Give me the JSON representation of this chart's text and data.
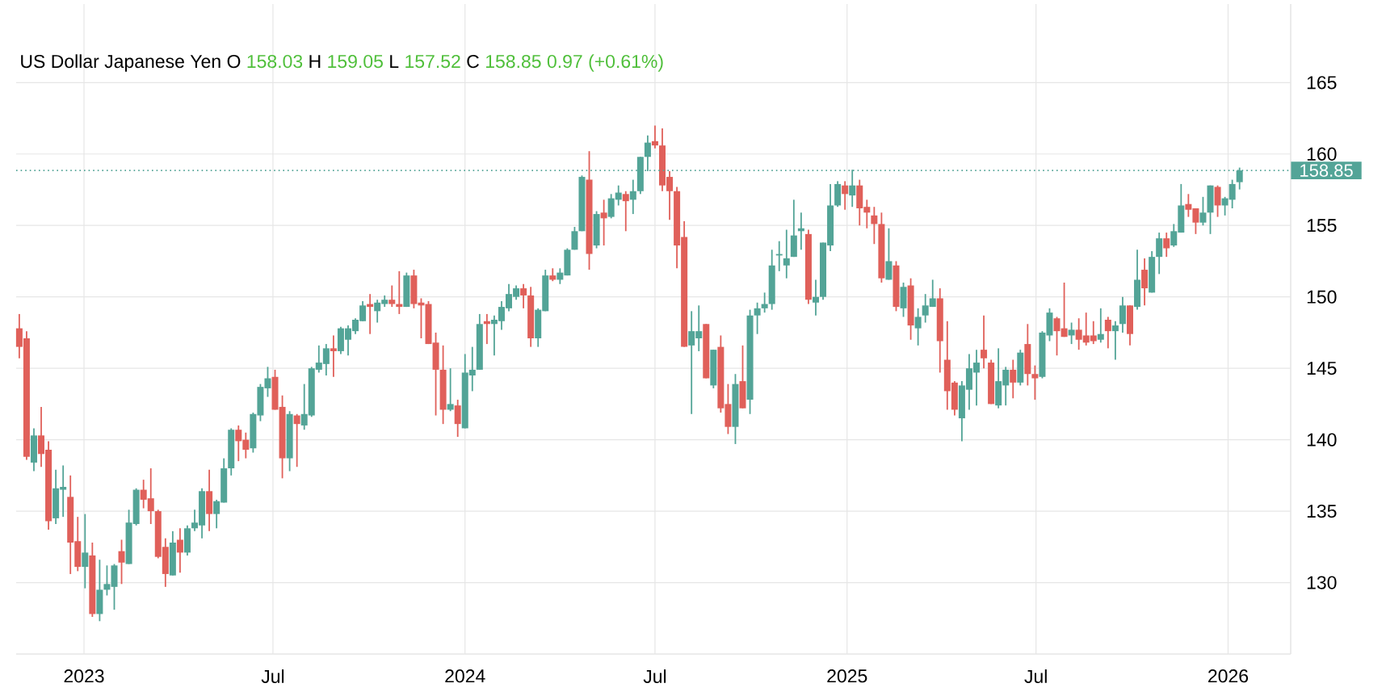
{
  "chart_data": {
    "type": "candlestick",
    "title": "US Dollar Japanese Yen",
    "annotations": [
      "O",
      "158.03",
      "H",
      "159.05",
      "L",
      "157.52",
      "C",
      "158.85",
      "0.97 (+0.61%)"
    ],
    "x": [
      "2022-10-31",
      "2022-11-07",
      "2022-11-14",
      "2022-11-21",
      "2022-11-28",
      "2022-12-05",
      "2022-12-12",
      "2022-12-19",
      "2022-12-26",
      "2023-01-02",
      "2023-01-09",
      "2023-01-16",
      "2023-01-23",
      "2023-01-30",
      "2023-02-06",
      "2023-02-13",
      "2023-02-20",
      "2023-02-27",
      "2023-03-06",
      "2023-03-13",
      "2023-03-20",
      "2023-03-27",
      "2023-04-03",
      "2023-04-10",
      "2023-04-17",
      "2023-04-24",
      "2023-05-01",
      "2023-05-08",
      "2023-05-15",
      "2023-05-22",
      "2023-05-29",
      "2023-06-05",
      "2023-06-12",
      "2023-06-19",
      "2023-06-26",
      "2023-07-03",
      "2023-07-10",
      "2023-07-17",
      "2023-07-24",
      "2023-07-31",
      "2023-08-07",
      "2023-08-14",
      "2023-08-21",
      "2023-08-28",
      "2023-09-04",
      "2023-09-11",
      "2023-09-18",
      "2023-09-25",
      "2023-10-02",
      "2023-10-09",
      "2023-10-16",
      "2023-10-23",
      "2023-10-30",
      "2023-11-06",
      "2023-11-13",
      "2023-11-20",
      "2023-11-27",
      "2023-12-04",
      "2023-12-11",
      "2023-12-18",
      "2023-12-25",
      "2024-01-01",
      "2024-01-08",
      "2024-01-15",
      "2024-01-22",
      "2024-01-29",
      "2024-02-05",
      "2024-02-12",
      "2024-02-19",
      "2024-02-26",
      "2024-03-04",
      "2024-03-11",
      "2024-03-18",
      "2024-03-25",
      "2024-04-01",
      "2024-04-08",
      "2024-04-15",
      "2024-04-22",
      "2024-04-29",
      "2024-05-06",
      "2024-05-13",
      "2024-05-20",
      "2024-05-27",
      "2024-06-03",
      "2024-06-10",
      "2024-06-17",
      "2024-06-24",
      "2024-07-01",
      "2024-07-08",
      "2024-07-15",
      "2024-07-22",
      "2024-07-29",
      "2024-08-05",
      "2024-08-12",
      "2024-08-19",
      "2024-08-26",
      "2024-09-02",
      "2024-09-09",
      "2024-09-16",
      "2024-09-23",
      "2024-09-30",
      "2024-10-07",
      "2024-10-14",
      "2024-10-21",
      "2024-10-28",
      "2024-11-04",
      "2024-11-11",
      "2024-11-18",
      "2024-11-25",
      "2024-12-02",
      "2024-12-09",
      "2024-12-16",
      "2024-12-23",
      "2024-12-30",
      "2025-01-06",
      "2025-01-13",
      "2025-01-20",
      "2025-01-27",
      "2025-02-03",
      "2025-02-10",
      "2025-02-17",
      "2025-02-24",
      "2025-03-03",
      "2025-03-10",
      "2025-03-17",
      "2025-03-24",
      "2025-03-31",
      "2025-04-07",
      "2025-04-14",
      "2025-04-21",
      "2025-04-28",
      "2025-05-05",
      "2025-05-12",
      "2025-05-19",
      "2025-05-26",
      "2025-06-02",
      "2025-06-09",
      "2025-06-16",
      "2025-06-23",
      "2025-06-30",
      "2025-07-07",
      "2025-07-14",
      "2025-07-21",
      "2025-07-28",
      "2025-08-04",
      "2025-08-11",
      "2025-08-18",
      "2025-08-25",
      "2025-09-01",
      "2025-09-08",
      "2025-09-15",
      "2025-09-22",
      "2025-09-29",
      "2025-10-06",
      "2025-10-13",
      "2025-10-20",
      "2025-10-27",
      "2025-11-03",
      "2025-11-10",
      "2025-11-17",
      "2025-11-24",
      "2025-12-01",
      "2025-12-08",
      "2025-12-15",
      "2025-12-22",
      "2025-12-29",
      "2026-01-05",
      "2026-01-12"
    ],
    "ohlc": [
      [
        147.8,
        148.8,
        145.7,
        146.5
      ],
      [
        147.1,
        147.6,
        138.6,
        138.8
      ],
      [
        138.4,
        140.8,
        137.8,
        140.3
      ],
      [
        140.3,
        142.3,
        138.1,
        139.0
      ],
      [
        139.3,
        139.9,
        133.7,
        134.3
      ],
      [
        134.5,
        137.9,
        134.1,
        136.6
      ],
      [
        136.5,
        138.2,
        134.6,
        136.7
      ],
      [
        136.0,
        137.5,
        130.6,
        132.8
      ],
      [
        132.9,
        134.6,
        130.8,
        131.1
      ],
      [
        131.1,
        134.8,
        129.6,
        132.1
      ],
      [
        131.9,
        132.8,
        127.6,
        127.8
      ],
      [
        127.8,
        131.6,
        127.3,
        129.5
      ],
      [
        129.5,
        131.2,
        129.1,
        129.9
      ],
      [
        129.7,
        131.3,
        128.1,
        131.2
      ],
      [
        132.2,
        133.0,
        129.9,
        131.4
      ],
      [
        131.3,
        135.1,
        131.3,
        134.2
      ],
      [
        134.1,
        136.6,
        134.0,
        136.5
      ],
      [
        136.5,
        137.2,
        135.2,
        135.8
      ],
      [
        135.9,
        138.0,
        134.1,
        135.0
      ],
      [
        135.0,
        135.1,
        131.7,
        131.8
      ],
      [
        132.5,
        133.1,
        129.7,
        130.6
      ],
      [
        130.5,
        133.6,
        130.5,
        132.8
      ],
      [
        133.0,
        133.8,
        130.7,
        132.1
      ],
      [
        132.1,
        134.0,
        131.9,
        133.8
      ],
      [
        133.8,
        135.1,
        133.6,
        134.2
      ],
      [
        134.0,
        136.6,
        133.1,
        136.4
      ],
      [
        136.4,
        137.9,
        133.6,
        134.8
      ],
      [
        134.8,
        135.8,
        133.8,
        135.7
      ],
      [
        135.6,
        138.7,
        135.6,
        138.0
      ],
      [
        138.0,
        140.8,
        137.5,
        140.7
      ],
      [
        140.7,
        141.0,
        138.5,
        139.9
      ],
      [
        140.0,
        140.5,
        138.7,
        139.3
      ],
      [
        139.4,
        141.9,
        139.1,
        141.8
      ],
      [
        141.7,
        143.9,
        141.3,
        143.7
      ],
      [
        143.6,
        145.1,
        143.0,
        144.3
      ],
      [
        144.4,
        144.9,
        142.1,
        142.1
      ],
      [
        142.3,
        143.1,
        137.3,
        138.7
      ],
      [
        138.7,
        142.0,
        137.8,
        141.8
      ],
      [
        141.7,
        141.8,
        138.1,
        141.1
      ],
      [
        141.0,
        143.9,
        140.7,
        141.8
      ],
      [
        141.7,
        145.1,
        141.6,
        145.0
      ],
      [
        144.9,
        146.6,
        144.7,
        145.4
      ],
      [
        145.3,
        146.7,
        144.5,
        146.4
      ],
      [
        146.4,
        147.3,
        144.4,
        146.2
      ],
      [
        146.2,
        147.9,
        146.0,
        147.8
      ],
      [
        147.0,
        148.0,
        145.9,
        147.8
      ],
      [
        147.6,
        148.5,
        147.4,
        148.4
      ],
      [
        148.3,
        149.7,
        148.3,
        149.4
      ],
      [
        149.5,
        150.2,
        147.4,
        149.3
      ],
      [
        149.0,
        149.8,
        148.2,
        149.6
      ],
      [
        149.5,
        150.1,
        149.3,
        149.8
      ],
      [
        149.8,
        150.8,
        149.3,
        149.5
      ],
      [
        149.5,
        151.8,
        148.8,
        149.3
      ],
      [
        149.3,
        151.7,
        149.3,
        151.5
      ],
      [
        151.5,
        151.9,
        149.2,
        149.5
      ],
      [
        149.6,
        149.9,
        147.1,
        149.4
      ],
      [
        149.5,
        149.7,
        146.7,
        146.7
      ],
      [
        146.8,
        147.5,
        141.7,
        144.9
      ],
      [
        144.9,
        146.6,
        141.1,
        142.1
      ],
      [
        142.1,
        145.0,
        142.0,
        142.5
      ],
      [
        142.4,
        142.8,
        140.2,
        141.1
      ],
      [
        140.8,
        146.0,
        140.8,
        144.7
      ],
      [
        144.5,
        146.5,
        143.4,
        144.9
      ],
      [
        144.9,
        148.8,
        144.9,
        148.1
      ],
      [
        148.3,
        148.8,
        146.7,
        148.1
      ],
      [
        148.1,
        148.7,
        145.9,
        148.4
      ],
      [
        148.3,
        149.7,
        147.7,
        149.3
      ],
      [
        149.2,
        150.9,
        149.0,
        150.2
      ],
      [
        150.0,
        150.8,
        149.8,
        150.6
      ],
      [
        150.6,
        150.9,
        149.2,
        150.1
      ],
      [
        150.1,
        150.7,
        146.5,
        147.1
      ],
      [
        147.1,
        149.2,
        146.5,
        149.1
      ],
      [
        149.0,
        151.9,
        149.0,
        151.5
      ],
      [
        151.5,
        152.0,
        151.1,
        151.2
      ],
      [
        151.2,
        152.0,
        150.9,
        151.7
      ],
      [
        151.5,
        153.4,
        151.5,
        153.3
      ],
      [
        153.3,
        154.9,
        153.3,
        154.6
      ],
      [
        154.6,
        158.5,
        154.6,
        158.4
      ],
      [
        158.2,
        160.2,
        151.9,
        153.0
      ],
      [
        153.6,
        156.0,
        153.4,
        155.8
      ],
      [
        155.9,
        156.8,
        153.6,
        155.5
      ],
      [
        155.6,
        157.2,
        155.5,
        156.9
      ],
      [
        156.8,
        157.8,
        156.4,
        157.3
      ],
      [
        157.2,
        157.4,
        154.6,
        156.7
      ],
      [
        156.8,
        158.2,
        155.8,
        157.4
      ],
      [
        157.4,
        159.8,
        157.2,
        159.8
      ],
      [
        159.8,
        161.3,
        158.8,
        160.8
      ],
      [
        160.9,
        162.0,
        160.4,
        160.6
      ],
      [
        160.6,
        161.8,
        157.4,
        157.8
      ],
      [
        158.4,
        158.8,
        155.4,
        157.4
      ],
      [
        157.4,
        157.7,
        152.0,
        153.6
      ],
      [
        154.2,
        155.3,
        146.5,
        146.5
      ],
      [
        146.6,
        149.0,
        141.8,
        147.6
      ],
      [
        147.1,
        149.4,
        146.2,
        147.6
      ],
      [
        148.1,
        148.1,
        144.3,
        144.3
      ],
      [
        143.8,
        146.3,
        143.6,
        146.3
      ],
      [
        146.5,
        147.3,
        141.9,
        142.2
      ],
      [
        142.5,
        143.9,
        140.4,
        140.9
      ],
      [
        140.9,
        144.6,
        139.7,
        143.9
      ],
      [
        144.1,
        146.6,
        142.2,
        142.2
      ],
      [
        142.8,
        149.1,
        141.8,
        148.7
      ],
      [
        148.7,
        149.6,
        147.4,
        149.2
      ],
      [
        149.2,
        150.3,
        148.9,
        149.5
      ],
      [
        149.5,
        153.3,
        149.1,
        152.2
      ],
      [
        152.9,
        153.9,
        151.8,
        153.0
      ],
      [
        152.2,
        154.7,
        151.3,
        152.7
      ],
      [
        152.8,
        156.8,
        152.8,
        154.3
      ],
      [
        154.6,
        155.9,
        153.3,
        154.8
      ],
      [
        154.4,
        154.7,
        149.5,
        149.8
      ],
      [
        149.6,
        151.2,
        148.7,
        150.0
      ],
      [
        150.0,
        153.8,
        149.8,
        153.8
      ],
      [
        153.6,
        157.9,
        153.2,
        156.4
      ],
      [
        156.4,
        158.1,
        156.3,
        157.9
      ],
      [
        157.8,
        158.1,
        156.1,
        157.2
      ],
      [
        157.1,
        158.9,
        156.3,
        157.8
      ],
      [
        157.8,
        158.2,
        155.0,
        156.2
      ],
      [
        156.3,
        156.8,
        154.8,
        155.9
      ],
      [
        155.7,
        156.3,
        153.7,
        155.1
      ],
      [
        155.1,
        155.9,
        151.0,
        151.3
      ],
      [
        151.2,
        154.8,
        151.2,
        152.5
      ],
      [
        152.2,
        152.5,
        149.0,
        149.3
      ],
      [
        149.2,
        151.0,
        148.6,
        150.7
      ],
      [
        150.8,
        151.3,
        147.0,
        148.0
      ],
      [
        147.8,
        149.2,
        146.6,
        148.6
      ],
      [
        148.7,
        150.2,
        148.2,
        149.4
      ],
      [
        149.3,
        151.2,
        149.3,
        149.9
      ],
      [
        149.9,
        150.6,
        144.7,
        146.9
      ],
      [
        145.6,
        148.3,
        142.1,
        143.4
      ],
      [
        144.0,
        144.1,
        141.7,
        142.1
      ],
      [
        141.5,
        144.1,
        139.9,
        143.8
      ],
      [
        143.5,
        146.0,
        142.1,
        145.0
      ],
      [
        144.7,
        146.3,
        142.4,
        145.4
      ],
      [
        146.3,
        148.7,
        145.0,
        145.7
      ],
      [
        145.4,
        145.6,
        142.5,
        142.5
      ],
      [
        142.4,
        146.4,
        142.2,
        144.1
      ],
      [
        143.8,
        145.1,
        142.4,
        144.9
      ],
      [
        144.9,
        145.6,
        142.9,
        144.0
      ],
      [
        144.0,
        146.3,
        143.8,
        146.1
      ],
      [
        146.7,
        148.1,
        143.8,
        144.6
      ],
      [
        144.6,
        145.2,
        142.8,
        144.3
      ],
      [
        144.4,
        147.6,
        144.3,
        147.5
      ],
      [
        147.3,
        149.2,
        146.9,
        148.9
      ],
      [
        148.5,
        148.6,
        145.9,
        147.6
      ],
      [
        147.8,
        151.0,
        147.2,
        147.2
      ],
      [
        147.3,
        148.2,
        146.7,
        147.7
      ],
      [
        147.7,
        148.5,
        146.3,
        147.0
      ],
      [
        147.3,
        148.9,
        146.6,
        146.8
      ],
      [
        147.3,
        148.3,
        146.7,
        146.9
      ],
      [
        147.0,
        149.2,
        146.8,
        147.4
      ],
      [
        148.4,
        148.6,
        146.4,
        147.6
      ],
      [
        147.6,
        148.3,
        145.6,
        148.0
      ],
      [
        148.1,
        150.0,
        147.5,
        149.4
      ],
      [
        149.4,
        149.4,
        146.6,
        147.4
      ],
      [
        149.3,
        153.3,
        149.1,
        151.2
      ],
      [
        151.9,
        152.7,
        149.4,
        150.6
      ],
      [
        150.3,
        153.2,
        150.3,
        152.8
      ],
      [
        152.8,
        154.5,
        151.6,
        154.1
      ],
      [
        154.1,
        154.5,
        152.8,
        153.4
      ],
      [
        153.6,
        155.1,
        153.5,
        154.6
      ],
      [
        154.5,
        157.9,
        154.5,
        156.4
      ],
      [
        156.5,
        157.2,
        155.6,
        156.1
      ],
      [
        156.2,
        156.2,
        154.4,
        155.2
      ],
      [
        155.2,
        157.0,
        155.0,
        155.9
      ],
      [
        155.9,
        157.8,
        154.4,
        157.8
      ],
      [
        157.7,
        157.8,
        155.6,
        156.4
      ],
      [
        156.4,
        157.0,
        155.7,
        156.9
      ],
      [
        156.8,
        158.2,
        156.2,
        157.9
      ],
      [
        158.03,
        159.05,
        157.52,
        158.85
      ]
    ],
    "xlim": [
      "2022-10-28",
      "2026-03-02"
    ],
    "ylim": [
      125,
      170.5
    ],
    "xticks": [
      {
        "value": "2023-01-01",
        "label": "2023"
      },
      {
        "value": "2023-07-01",
        "label": "Jul"
      },
      {
        "value": "2024-01-01",
        "label": "2024"
      },
      {
        "value": "2024-07-01",
        "label": "Jul"
      },
      {
        "value": "2025-01-01",
        "label": "2025"
      },
      {
        "value": "2025-07-01",
        "label": "Jul"
      },
      {
        "value": "2026-01-01",
        "label": "2026"
      }
    ],
    "yticks": [
      130,
      135,
      140,
      145,
      150,
      155,
      160,
      165
    ],
    "grid": true,
    "ref_lines": [
      {
        "axis": "y",
        "value": 158.85,
        "label": "158.85",
        "color": "#53a497",
        "line_style": "dotted"
      }
    ]
  }
}
